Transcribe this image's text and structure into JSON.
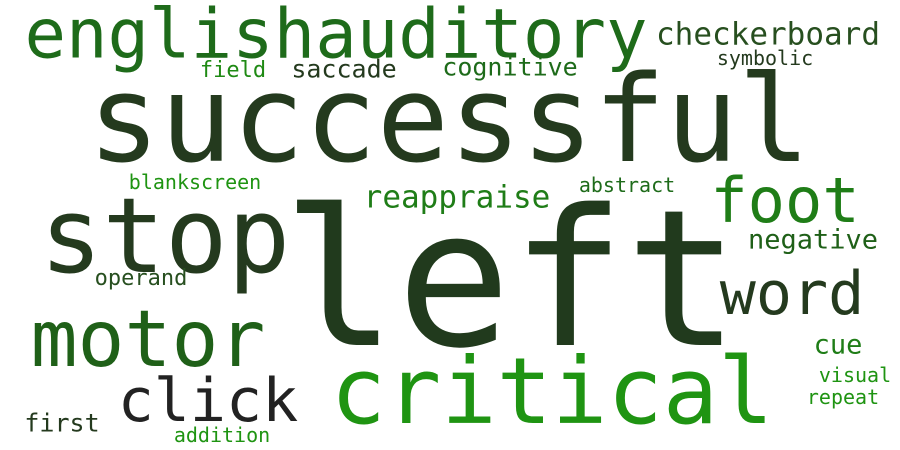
{
  "colors": {
    "background": "#ffffff",
    "darkest": "#213a1d",
    "dark": "#274f1f",
    "mid_dark": "#1e6b1a",
    "mid": "#1f7d17",
    "bright": "#1f9412",
    "charcoal": "#222222"
  },
  "words": [
    {
      "text": "successful",
      "color": "#243a1e"
    },
    {
      "text": "left",
      "color": "#213a1d"
    },
    {
      "text": "stop",
      "color": "#243a1e"
    },
    {
      "text": "critical",
      "color": "#1f9412"
    },
    {
      "text": "englishauditory",
      "color": "#1e6b1a"
    },
    {
      "text": "motor",
      "color": "#1f6018"
    },
    {
      "text": "click",
      "color": "#222222"
    },
    {
      "text": "foot",
      "color": "#1f7d17"
    },
    {
      "text": "word",
      "color": "#243a1e"
    },
    {
      "text": "checkerboard",
      "color": "#274f1f"
    },
    {
      "text": "reappraise",
      "color": "#1f7d17"
    },
    {
      "text": "negative",
      "color": "#1f6018"
    },
    {
      "text": "cognitive",
      "color": "#1e6b1a"
    },
    {
      "text": "saccade",
      "color": "#243a1e"
    },
    {
      "text": "field",
      "color": "#1f8a14"
    },
    {
      "text": "symbolic",
      "color": "#243a1e"
    },
    {
      "text": "blankscreen",
      "color": "#1f9412"
    },
    {
      "text": "abstract",
      "color": "#1e6b1a"
    },
    {
      "text": "operand",
      "color": "#274f1f"
    },
    {
      "text": "cue",
      "color": "#1f7d17"
    },
    {
      "text": "visual",
      "color": "#1f9412"
    },
    {
      "text": "repeat",
      "color": "#1f9412"
    },
    {
      "text": "first",
      "color": "#243a1e"
    },
    {
      "text": "addition",
      "color": "#1f9412"
    }
  ]
}
